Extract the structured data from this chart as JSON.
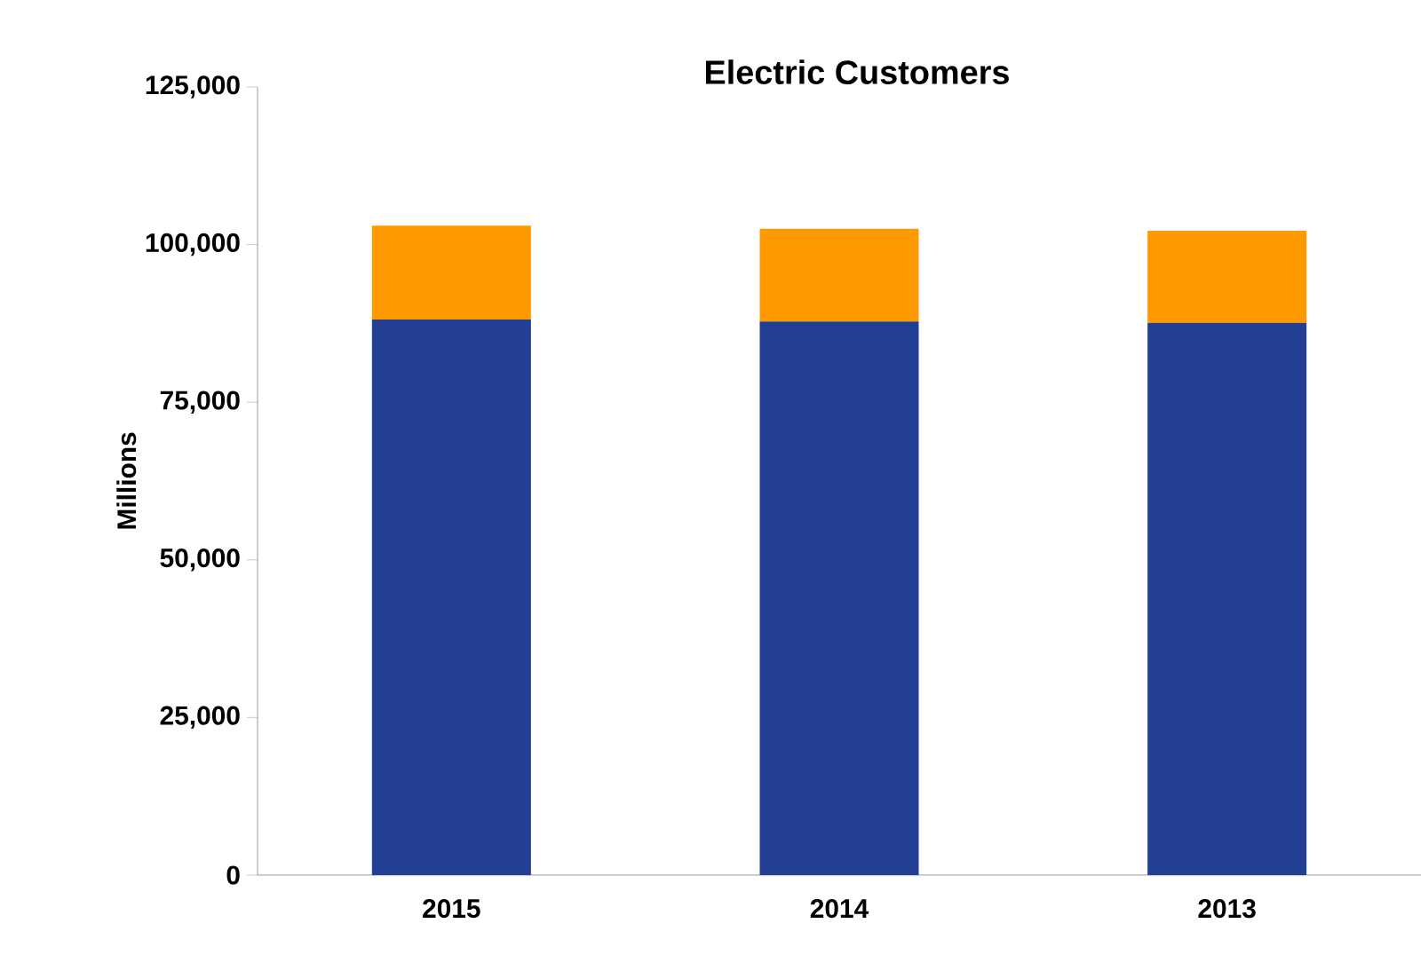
{
  "chart_data": {
    "type": "bar",
    "title": "Electric Customers",
    "ylabel": "Millions",
    "categories": [
      "2015",
      "2014",
      "2013"
    ],
    "stacked": true,
    "series": [
      {
        "color": "#233f94",
        "values": [
          88100,
          87800,
          87600
        ]
      },
      {
        "color": "#ff9900",
        "values": [
          14900,
          14700,
          14600
        ]
      }
    ],
    "ylim": [
      0,
      125000
    ],
    "yticks": [
      0,
      {
        "value": 25000,
        "label": "25,000"
      },
      {
        "value": 50000,
        "label": "50,000"
      },
      {
        "value": 75000,
        "label": "75,000"
      },
      {
        "value": 100000,
        "label": "100,000"
      },
      {
        "value": 125000,
        "label": "125,000"
      }
    ]
  }
}
